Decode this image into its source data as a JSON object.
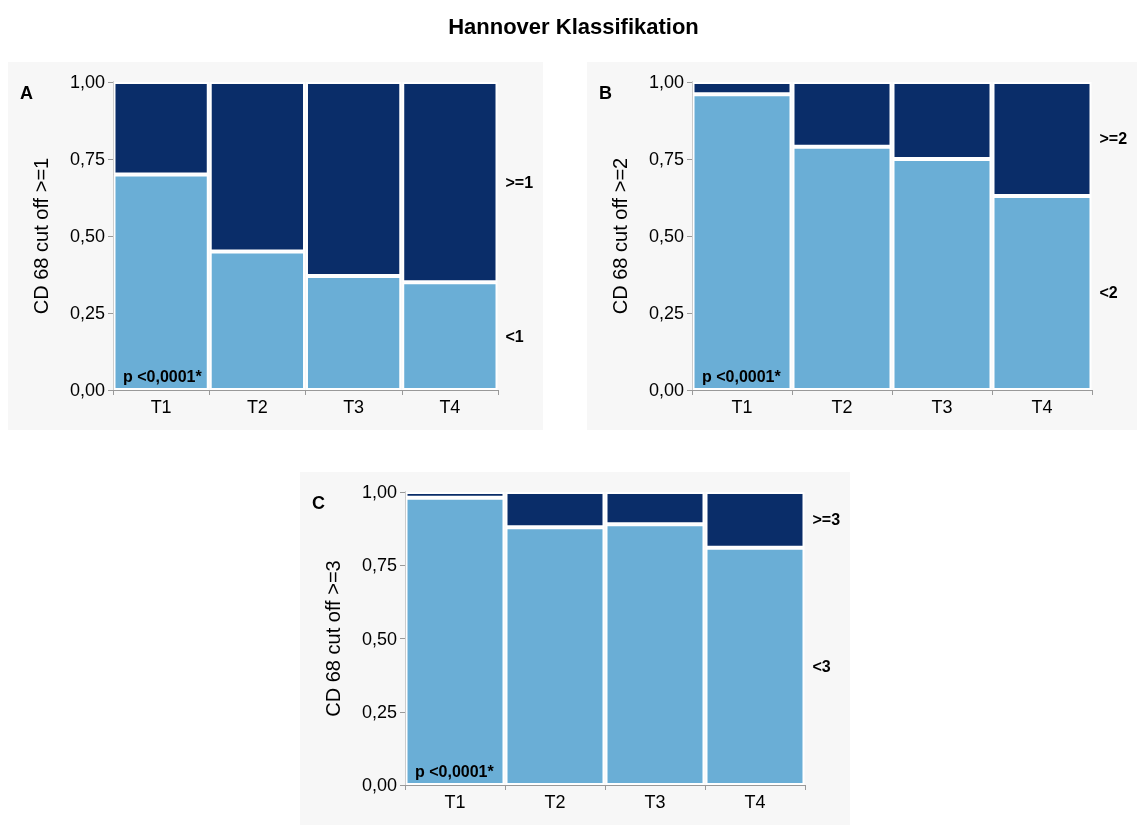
{
  "chart_data": [
    {
      "type": "bar",
      "title": "Hannover Klassifikation",
      "ylabel": "CD 68 cut off >=1",
      "categories": [
        "T1",
        "T2",
        "T3",
        "T4"
      ],
      "stacked": true,
      "grid": false,
      "legend": false,
      "ylim": [
        0,
        1
      ],
      "yticks": [
        {
          "value": 0,
          "label": "0,00"
        },
        {
          "value": 0.25,
          "label": "0,25"
        },
        {
          "value": 0.5,
          "label": "0,50"
        },
        {
          "value": 0.75,
          "label": "0,75"
        },
        {
          "value": 1,
          "label": "1,00"
        }
      ],
      "annotations": [
        "A",
        "p <0,0001*"
      ],
      "series": [
        {
          "name": "<1",
          "color": "#6aaed6",
          "values": [
            0.7,
            0.45,
            0.37,
            0.35
          ]
        },
        {
          "name": ">=1",
          "color": "#0a2d69",
          "values": [
            0.3,
            0.55,
            0.63,
            0.65
          ]
        }
      ]
    },
    {
      "type": "bar",
      "ylabel": "CD 68 cut off >=2",
      "categories": [
        "T1",
        "T2",
        "T3",
        "T4"
      ],
      "stacked": true,
      "grid": false,
      "legend": false,
      "ylim": [
        0,
        1
      ],
      "yticks": [
        {
          "value": 0,
          "label": "0,00"
        },
        {
          "value": 0.25,
          "label": "0,25"
        },
        {
          "value": 0.5,
          "label": "0,50"
        },
        {
          "value": 0.75,
          "label": "0,75"
        },
        {
          "value": 1,
          "label": "1,00"
        }
      ],
      "annotations": [
        "B",
        "p <0,0001*"
      ],
      "series": [
        {
          "name": "<2",
          "color": "#6aaed6",
          "values": [
            0.96,
            0.79,
            0.75,
            0.63
          ]
        },
        {
          "name": ">=2",
          "color": "#0a2d69",
          "values": [
            0.04,
            0.21,
            0.25,
            0.37
          ]
        }
      ]
    },
    {
      "type": "bar",
      "ylabel": "CD 68 cut off >=3",
      "categories": [
        "T1",
        "T2",
        "T3",
        "T4"
      ],
      "stacked": true,
      "grid": false,
      "legend": false,
      "ylim": [
        0,
        1
      ],
      "yticks": [
        {
          "value": 0,
          "label": "0,00"
        },
        {
          "value": 0.25,
          "label": "0,25"
        },
        {
          "value": 0.5,
          "label": "0,50"
        },
        {
          "value": 0.75,
          "label": "0,75"
        },
        {
          "value": 1,
          "label": "1,00"
        }
      ],
      "annotations": [
        "C",
        "p <0,0001*"
      ],
      "series": [
        {
          "name": "<3",
          "color": "#6aaed6",
          "values": [
            0.98,
            0.88,
            0.89,
            0.81
          ]
        },
        {
          "name": ">=3",
          "color": "#0a2d69",
          "values": [
            0.02,
            0.12,
            0.11,
            0.19
          ]
        }
      ]
    }
  ]
}
